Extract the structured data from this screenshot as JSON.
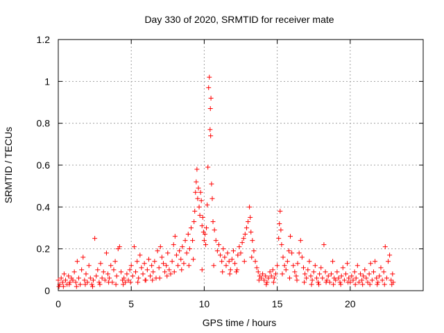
{
  "chart_data": {
    "type": "scatter",
    "title": "Day 330 of 2020, SRMTID for receiver mate",
    "xlabel": "GPS time / hours",
    "ylabel": "SRMTID / TECUs",
    "xlim": [
      0,
      25
    ],
    "ylim": [
      0,
      1.2
    ],
    "xticks": [
      0,
      5,
      10,
      15,
      20
    ],
    "xtick_labels": [
      "0",
      "5",
      "10",
      "15",
      "20"
    ],
    "yticks": [
      0,
      0.2,
      0.4,
      0.6,
      0.8,
      1.0,
      1.2
    ],
    "ytick_labels": [
      "0",
      "0.2",
      "0.4",
      "0.6",
      "0.8",
      "1",
      "1.2"
    ],
    "grid": true,
    "marker": "+",
    "color": "#ff0000",
    "series": [
      {
        "name": "SRMTID",
        "points": [
          [
            0.0,
            0.05
          ],
          [
            0.1,
            0.03
          ],
          [
            0.2,
            0.06
          ],
          [
            0.3,
            0.04
          ],
          [
            0.4,
            0.08
          ],
          [
            0.5,
            0.05
          ],
          [
            0.6,
            0.03
          ],
          [
            0.7,
            0.07
          ],
          [
            0.8,
            0.04
          ],
          [
            0.9,
            0.06
          ],
          [
            1.0,
            0.05
          ],
          [
            1.1,
            0.09
          ],
          [
            1.2,
            0.04
          ],
          [
            1.3,
            0.14
          ],
          [
            1.4,
            0.06
          ],
          [
            1.5,
            0.03
          ],
          [
            1.6,
            0.1
          ],
          [
            1.7,
            0.16
          ],
          [
            1.8,
            0.05
          ],
          [
            1.9,
            0.08
          ],
          [
            2.0,
            0.04
          ],
          [
            2.1,
            0.12
          ],
          [
            2.2,
            0.06
          ],
          [
            2.3,
            0.03
          ],
          [
            2.4,
            0.05
          ],
          [
            2.5,
            0.25
          ],
          [
            2.6,
            0.07
          ],
          [
            2.7,
            0.1
          ],
          [
            2.8,
            0.04
          ],
          [
            2.9,
            0.13
          ],
          [
            3.0,
            0.06
          ],
          [
            3.1,
            0.09
          ],
          [
            3.2,
            0.05
          ],
          [
            3.3,
            0.18
          ],
          [
            3.4,
            0.08
          ],
          [
            3.5,
            0.06
          ],
          [
            3.6,
            0.12
          ],
          [
            3.7,
            0.04
          ],
          [
            3.8,
            0.1
          ],
          [
            3.9,
            0.14
          ],
          [
            4.0,
            0.07
          ],
          [
            4.1,
            0.2
          ],
          [
            4.2,
            0.21
          ],
          [
            4.3,
            0.09
          ],
          [
            4.4,
            0.05
          ],
          [
            4.5,
            0.06
          ],
          [
            4.6,
            0.04
          ],
          [
            4.7,
            0.08
          ],
          [
            4.8,
            0.05
          ],
          [
            4.9,
            0.1
          ],
          [
            5.0,
            0.12
          ],
          [
            5.1,
            0.07
          ],
          [
            5.2,
            0.21
          ],
          [
            5.3,
            0.09
          ],
          [
            5.4,
            0.14
          ],
          [
            5.5,
            0.06
          ],
          [
            5.6,
            0.17
          ],
          [
            5.7,
            0.11
          ],
          [
            5.8,
            0.08
          ],
          [
            5.9,
            0.13
          ],
          [
            6.0,
            0.05
          ],
          [
            6.1,
            0.1
          ],
          [
            6.2,
            0.15
          ],
          [
            6.3,
            0.07
          ],
          [
            6.4,
            0.12
          ],
          [
            6.5,
            0.09
          ],
          [
            6.6,
            0.14
          ],
          [
            6.7,
            0.06
          ],
          [
            6.8,
            0.19
          ],
          [
            6.9,
            0.11
          ],
          [
            7.0,
            0.21
          ],
          [
            7.1,
            0.16
          ],
          [
            7.2,
            0.13
          ],
          [
            7.3,
            0.09
          ],
          [
            7.4,
            0.12
          ],
          [
            7.5,
            0.18
          ],
          [
            7.6,
            0.1
          ],
          [
            7.7,
            0.08
          ],
          [
            7.8,
            0.14
          ],
          [
            7.9,
            0.22
          ],
          [
            8.0,
            0.26
          ],
          [
            8.1,
            0.17
          ],
          [
            8.2,
            0.12
          ],
          [
            8.3,
            0.19
          ],
          [
            8.4,
            0.15
          ],
          [
            8.5,
            0.21
          ],
          [
            8.6,
            0.13
          ],
          [
            8.7,
            0.24
          ],
          [
            8.8,
            0.18
          ],
          [
            8.9,
            0.27
          ],
          [
            9.0,
            0.2
          ],
          [
            9.1,
            0.3
          ],
          [
            9.2,
            0.24
          ],
          [
            9.3,
            0.33
          ],
          [
            9.35,
            0.38
          ],
          [
            9.4,
            0.47
          ],
          [
            9.45,
            0.52
          ],
          [
            9.5,
            0.58
          ],
          [
            9.55,
            0.44
          ],
          [
            9.6,
            0.49
          ],
          [
            9.65,
            0.4
          ],
          [
            9.7,
            0.36
          ],
          [
            9.75,
            0.47
          ],
          [
            9.8,
            0.43
          ],
          [
            9.85,
            0.31
          ],
          [
            9.9,
            0.35
          ],
          [
            9.95,
            0.28
          ],
          [
            10.0,
            0.24
          ],
          [
            10.05,
            0.27
          ],
          [
            10.1,
            0.22
          ],
          [
            10.15,
            0.3
          ],
          [
            10.2,
            0.41
          ],
          [
            10.25,
            0.59
          ],
          [
            10.3,
            0.97
          ],
          [
            10.35,
            1.02
          ],
          [
            10.4,
            0.77
          ],
          [
            10.42,
            0.87
          ],
          [
            10.44,
            0.74
          ],
          [
            10.46,
            0.92
          ],
          [
            10.5,
            0.51
          ],
          [
            10.55,
            0.44
          ],
          [
            10.6,
            0.33
          ],
          [
            10.7,
            0.29
          ],
          [
            10.8,
            0.24
          ],
          [
            10.9,
            0.19
          ],
          [
            11.0,
            0.22
          ],
          [
            11.1,
            0.17
          ],
          [
            11.2,
            0.14
          ],
          [
            11.3,
            0.2
          ],
          [
            11.4,
            0.16
          ],
          [
            11.5,
            0.12
          ],
          [
            11.6,
            0.18
          ],
          [
            11.7,
            0.14
          ],
          [
            11.8,
            0.1
          ],
          [
            11.9,
            0.15
          ],
          [
            12.0,
            0.19
          ],
          [
            12.1,
            0.13
          ],
          [
            12.2,
            0.09
          ],
          [
            12.3,
            0.17
          ],
          [
            12.4,
            0.21
          ],
          [
            12.5,
            0.18
          ],
          [
            12.6,
            0.23
          ],
          [
            12.7,
            0.25
          ],
          [
            12.8,
            0.27
          ],
          [
            12.9,
            0.3
          ],
          [
            13.0,
            0.33
          ],
          [
            13.1,
            0.4
          ],
          [
            13.15,
            0.35
          ],
          [
            13.2,
            0.28
          ],
          [
            13.3,
            0.24
          ],
          [
            13.4,
            0.19
          ],
          [
            13.5,
            0.14
          ],
          [
            13.6,
            0.11
          ],
          [
            13.7,
            0.09
          ],
          [
            13.8,
            0.07
          ],
          [
            13.9,
            0.06
          ],
          [
            14.0,
            0.08
          ],
          [
            14.1,
            0.05
          ],
          [
            14.2,
            0.07
          ],
          [
            14.3,
            0.04
          ],
          [
            14.4,
            0.06
          ],
          [
            14.5,
            0.09
          ],
          [
            14.6,
            0.07
          ],
          [
            14.7,
            0.1
          ],
          [
            14.8,
            0.06
          ],
          [
            14.9,
            0.08
          ],
          [
            15.0,
            0.12
          ],
          [
            15.1,
            0.25
          ],
          [
            15.15,
            0.32
          ],
          [
            15.2,
            0.38
          ],
          [
            15.25,
            0.29
          ],
          [
            15.3,
            0.22
          ],
          [
            15.4,
            0.16
          ],
          [
            15.5,
            0.12
          ],
          [
            15.6,
            0.1
          ],
          [
            15.7,
            0.14
          ],
          [
            15.8,
            0.19
          ],
          [
            15.9,
            0.26
          ],
          [
            16.0,
            0.18
          ],
          [
            16.1,
            0.12
          ],
          [
            16.2,
            0.09
          ],
          [
            16.3,
            0.07
          ],
          [
            16.4,
            0.13
          ],
          [
            16.5,
            0.18
          ],
          [
            16.6,
            0.24
          ],
          [
            16.7,
            0.16
          ],
          [
            16.8,
            0.11
          ],
          [
            16.9,
            0.08
          ],
          [
            17.0,
            0.06
          ],
          [
            17.1,
            0.1
          ],
          [
            17.2,
            0.14
          ],
          [
            17.3,
            0.07
          ],
          [
            17.4,
            0.05
          ],
          [
            17.5,
            0.09
          ],
          [
            17.6,
            0.12
          ],
          [
            17.7,
            0.06
          ],
          [
            17.8,
            0.04
          ],
          [
            17.9,
            0.08
          ],
          [
            18.0,
            0.11
          ],
          [
            18.1,
            0.06
          ],
          [
            18.2,
            0.22
          ],
          [
            18.3,
            0.09
          ],
          [
            18.4,
            0.05
          ],
          [
            18.5,
            0.07
          ],
          [
            18.6,
            0.04
          ],
          [
            18.7,
            0.08
          ],
          [
            18.8,
            0.14
          ],
          [
            18.9,
            0.06
          ],
          [
            19.0,
            0.05
          ],
          [
            19.1,
            0.09
          ],
          [
            19.2,
            0.06
          ],
          [
            19.3,
            0.04
          ],
          [
            19.4,
            0.07
          ],
          [
            19.5,
            0.11
          ],
          [
            19.6,
            0.05
          ],
          [
            19.7,
            0.08
          ],
          [
            19.8,
            0.13
          ],
          [
            19.9,
            0.06
          ],
          [
            20.0,
            0.04
          ],
          [
            20.1,
            0.07
          ],
          [
            20.2,
            0.05
          ],
          [
            20.3,
            0.09
          ],
          [
            20.4,
            0.06
          ],
          [
            20.5,
            0.12
          ],
          [
            20.6,
            0.04
          ],
          [
            20.7,
            0.08
          ],
          [
            20.8,
            0.05
          ],
          [
            20.9,
            0.07
          ],
          [
            21.0,
            0.1
          ],
          [
            21.1,
            0.06
          ],
          [
            21.2,
            0.04
          ],
          [
            21.3,
            0.08
          ],
          [
            21.4,
            0.13
          ],
          [
            21.5,
            0.05
          ],
          [
            21.6,
            0.09
          ],
          [
            21.7,
            0.14
          ],
          [
            21.8,
            0.06
          ],
          [
            21.9,
            0.04
          ],
          [
            22.0,
            0.07
          ],
          [
            22.1,
            0.11
          ],
          [
            22.2,
            0.05
          ],
          [
            22.3,
            0.09
          ],
          [
            22.4,
            0.21
          ],
          [
            22.5,
            0.06
          ],
          [
            22.6,
            0.14
          ],
          [
            22.7,
            0.17
          ],
          [
            22.8,
            0.05
          ],
          [
            22.9,
            0.08
          ],
          [
            22.95,
            0.04
          ],
          [
            0.05,
            0.02
          ],
          [
            0.35,
            0.02
          ],
          [
            0.75,
            0.03
          ],
          [
            1.25,
            0.02
          ],
          [
            1.85,
            0.03
          ],
          [
            2.35,
            0.02
          ],
          [
            2.85,
            0.03
          ],
          [
            3.45,
            0.04
          ],
          [
            3.95,
            0.03
          ],
          [
            4.45,
            0.03
          ],
          [
            4.95,
            0.04
          ],
          [
            5.45,
            0.04
          ],
          [
            5.95,
            0.05
          ],
          [
            6.45,
            0.05
          ],
          [
            6.95,
            0.06
          ],
          [
            7.45,
            0.07
          ],
          [
            7.95,
            0.09
          ],
          [
            8.45,
            0.1
          ],
          [
            8.95,
            0.12
          ],
          [
            9.25,
            0.15
          ],
          [
            9.85,
            0.1
          ],
          [
            10.65,
            0.12
          ],
          [
            11.25,
            0.09
          ],
          [
            11.75,
            0.08
          ],
          [
            12.25,
            0.1
          ],
          [
            12.75,
            0.14
          ],
          [
            13.25,
            0.16
          ],
          [
            13.75,
            0.05
          ],
          [
            14.25,
            0.03
          ],
          [
            14.75,
            0.04
          ],
          [
            15.35,
            0.08
          ],
          [
            15.85,
            0.06
          ],
          [
            16.35,
            0.05
          ],
          [
            16.85,
            0.04
          ],
          [
            17.35,
            0.03
          ],
          [
            17.85,
            0.03
          ],
          [
            18.35,
            0.04
          ],
          [
            18.85,
            0.03
          ],
          [
            19.35,
            0.03
          ],
          [
            19.85,
            0.04
          ],
          [
            20.35,
            0.03
          ],
          [
            20.85,
            0.03
          ],
          [
            21.35,
            0.03
          ],
          [
            21.85,
            0.03
          ],
          [
            22.35,
            0.03
          ],
          [
            22.85,
            0.03
          ]
        ]
      }
    ]
  }
}
